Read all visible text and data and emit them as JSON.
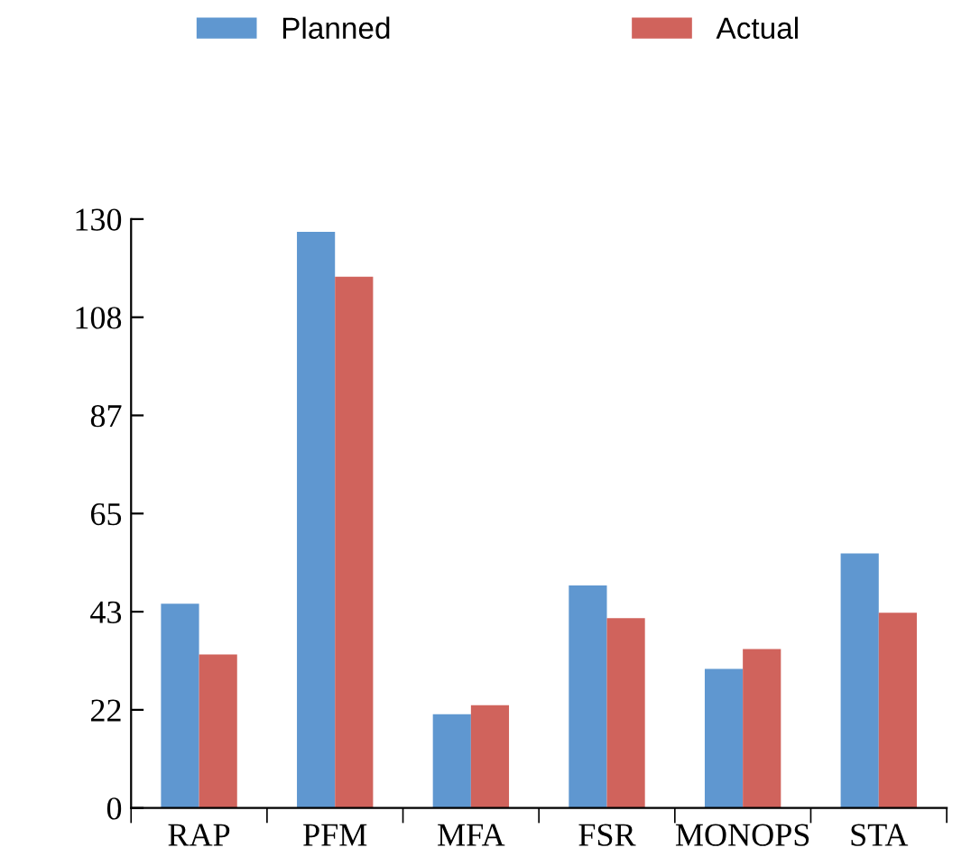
{
  "chart_data": {
    "type": "bar",
    "categories": [
      "RAP",
      "PFM",
      "MFA",
      "FSR",
      "MONOPS",
      "STA"
    ],
    "series": [
      {
        "name": "Planned",
        "color": "#5f97d0",
        "values": [
          45.1,
          127.2,
          20.7,
          49.1,
          30.7,
          56.2
        ]
      },
      {
        "name": "Actual",
        "color": "#d0635c",
        "values": [
          33.9,
          117.3,
          22.7,
          41.9,
          35.1,
          43.1
        ]
      }
    ],
    "ylim": [
      0,
      130
    ],
    "yticks": [
      0,
      {
        "value": 21.667,
        "label": "22"
      },
      {
        "value": 43.333,
        "label": "43"
      },
      65,
      {
        "value": 86.667,
        "label": "87"
      },
      {
        "value": 108.333,
        "label": "108"
      },
      130
    ],
    "grid": false,
    "legend": "top"
  }
}
